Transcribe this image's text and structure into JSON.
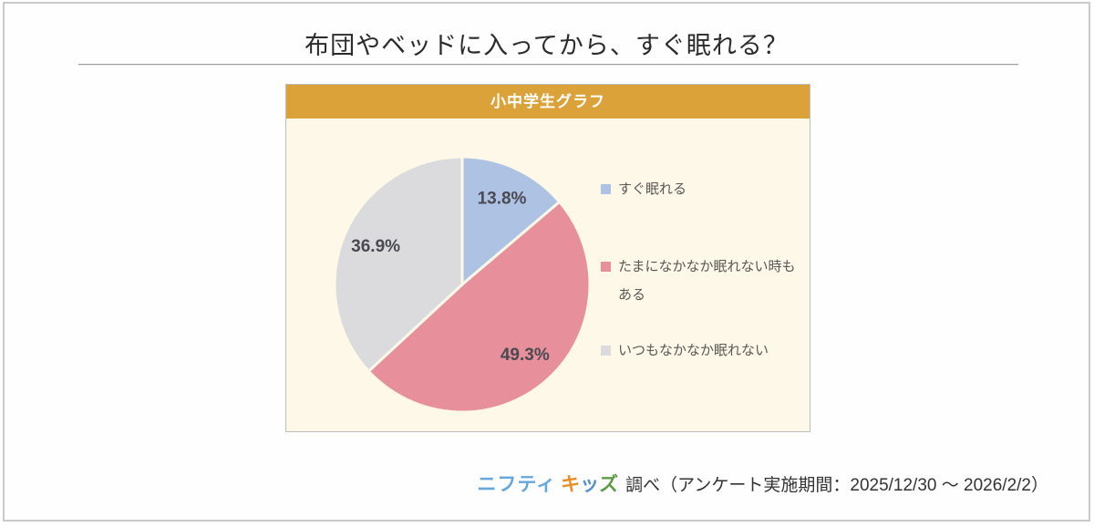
{
  "page": {
    "title": "布団やベッドに入ってから、すぐ眠れる？"
  },
  "panel": {
    "header": "小中学生グラフ",
    "background": "#fdf8e8",
    "header_background": "#dca23a"
  },
  "chart_data": {
    "type": "pie",
    "title": "小中学生グラフ",
    "start_angle_deg": 0,
    "direction": "clockwise",
    "value_suffix": "%",
    "label_position": "inside",
    "legend_position": "right",
    "slices": [
      {
        "label": "すぐ眠れる",
        "value": 13.8,
        "color": "#aec2e3"
      },
      {
        "label": "たまになかなか眠れない時もある",
        "value": 49.3,
        "color": "#e78f9b"
      },
      {
        "label": "いつもなかなか眠れない",
        "value": 36.9,
        "color": "#dbdbdd"
      }
    ],
    "label_color": "#4a4a52",
    "slice_gap_color": "#fdf8e8"
  },
  "attribution": {
    "logo_part1": "ニフティ",
    "logo_part1_color": "#64a7dc",
    "logo_part2_chars": [
      {
        "char": "キ",
        "color": "#e78c28"
      },
      {
        "char": "ッ",
        "color": "#5590cb"
      },
      {
        "char": "ズ",
        "color": "#5c9c44"
      }
    ],
    "text": "調べ（アンケート実施期間：2025/12/30 ～ 2026/2/2）"
  }
}
